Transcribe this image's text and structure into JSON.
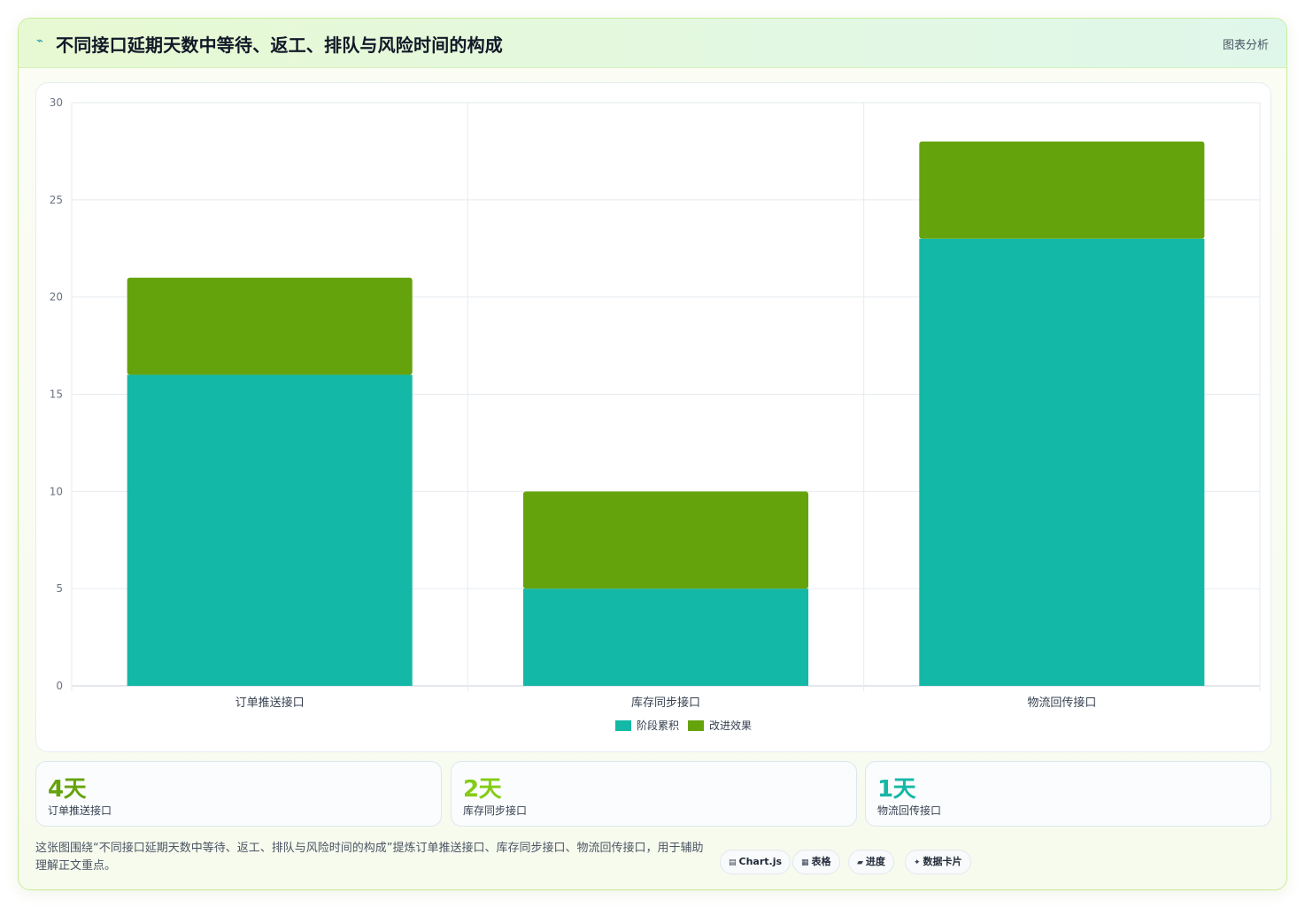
{
  "header": {
    "icon": "chart-icon",
    "title": "不同接口延期天数中等待、返工、排队与风险时间的构成",
    "tag": "图表分析"
  },
  "chart_data": {
    "type": "bar",
    "stacked": true,
    "categories": [
      "订单推送接口",
      "库存同步接口",
      "物流回传接口"
    ],
    "series": [
      {
        "name": "阶段累积",
        "values": [
          16,
          5,
          23
        ],
        "color": "#14b8a6"
      },
      {
        "name": "改进效果",
        "values": [
          5,
          5,
          5
        ],
        "color": "#65a30d"
      }
    ],
    "ylim": [
      0,
      30
    ],
    "yticks": [
      0,
      5,
      10,
      15,
      20,
      25,
      30
    ],
    "grid": true,
    "legend": "bottom"
  },
  "stats": [
    {
      "value": "4天",
      "label": "订单推送接口",
      "color": "#65a30d"
    },
    {
      "value": "2天",
      "label": "库存同步接口",
      "color": "#84cc16"
    },
    {
      "value": "1天",
      "label": "物流回传接口",
      "color": "#14b8a6"
    }
  ],
  "note": "这张图围绕“不同接口延期天数中等待、返工、排队与风险时间的构成”提炼订单推送接口、库存同步接口、物流回传接口，用于辅助理解正文重点。",
  "chips": [
    {
      "icon": "▤",
      "icon_name": "chart-file-icon",
      "label": "Chart.js"
    },
    {
      "icon": "▦",
      "icon_name": "table-icon",
      "label": "表格"
    },
    {
      "icon": "▰",
      "icon_name": "progress-icon",
      "label": "进度"
    },
    {
      "icon": "✦",
      "icon_name": "sparkle-icon",
      "label": "数据卡片"
    }
  ]
}
